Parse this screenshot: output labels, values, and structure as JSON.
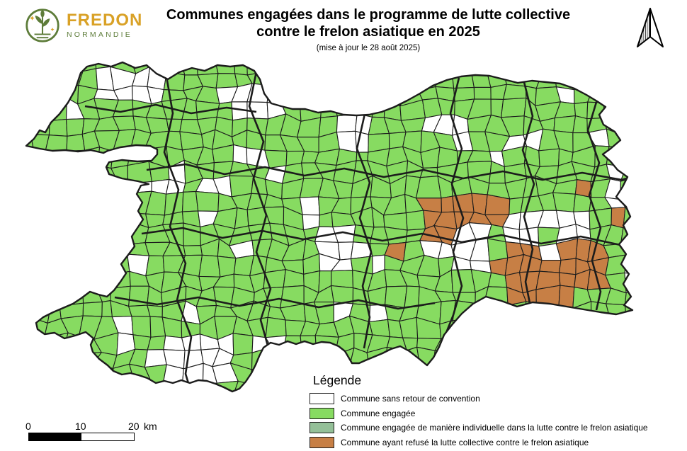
{
  "header": {
    "logo": {
      "brand": "FREDON",
      "region": "NORMANDIE"
    },
    "title_lines": [
      "Communes engagées dans le programme de lutte collective",
      "contre le frelon asiatique en 2025"
    ],
    "subtitle": "(mise à jour le 28 août 2025)"
  },
  "legend": {
    "title": "Légende",
    "items": [
      {
        "label": "Commune sans retour de convention",
        "color": "#FFFFFF"
      },
      {
        "label": "Commune engagée",
        "color": "#87DB61"
      },
      {
        "label": "Commune engagée de manière individuelle dans la lutte contre le frelon asiatique",
        "color": "#94C098"
      },
      {
        "label": "Commune ayant refusé la lutte collective contre le frelon asiatique",
        "color": "#C77F45"
      }
    ]
  },
  "scalebar": {
    "ticks": [
      "0",
      "10",
      "20"
    ],
    "unit": "km"
  },
  "colors": {
    "engaged": "#87DB61",
    "individual": "#94C098",
    "refused": "#C77F45",
    "no_convention": "#FFFFFF",
    "boundary": "#1C1C1C",
    "logo_gold": "#D9A126",
    "logo_green": "#5D7C39"
  }
}
